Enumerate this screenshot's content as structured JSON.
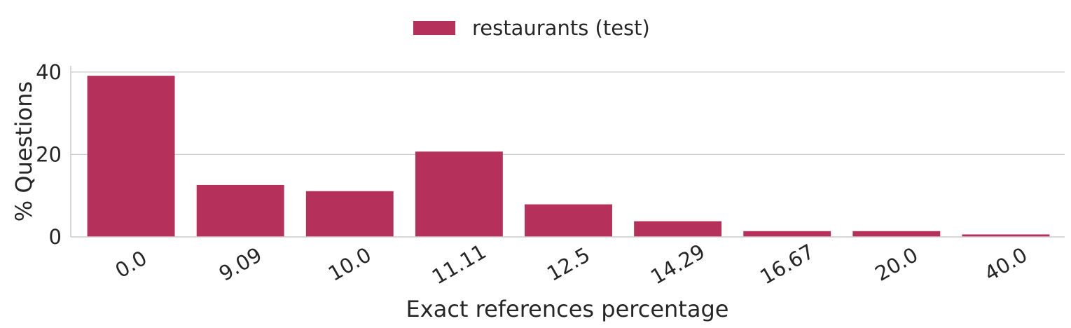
{
  "chart_data": {
    "type": "bar",
    "categories": [
      "0.0",
      "9.09",
      "10.0",
      "11.11",
      "12.5",
      "14.29",
      "16.67",
      "20.0",
      "40.0"
    ],
    "series": [
      {
        "name": "restaurants (test)",
        "color": "#b5305a",
        "values": [
          39.1,
          12.6,
          11.1,
          20.7,
          7.9,
          3.8,
          1.4,
          1.4,
          0.6
        ]
      }
    ],
    "title": "",
    "xlabel": "Exact references percentage",
    "ylabel": "% Questions",
    "ylim": [
      0,
      41.5
    ],
    "yticks": [
      0,
      20,
      40
    ],
    "grid": "horizontal",
    "legend_position": "top-center",
    "xtick_rotation": 30
  }
}
